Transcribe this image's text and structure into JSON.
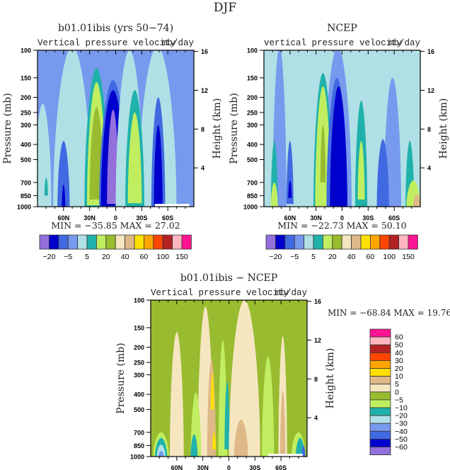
{
  "chart_data": [
    {
      "type": "heatmap",
      "figure_title": "DJF",
      "id": "model",
      "title": "b01.01ibis (yrs 50−74)",
      "left_string": "Vertical pressure velocity",
      "right_string": "mb/day",
      "ylabel": "Pressure (mb)",
      "ylabel_right": "Height (km)",
      "xlabel": "",
      "x_ticks": [
        "60N",
        "30N",
        "0",
        "30S",
        "60S"
      ],
      "x_range": [
        "90N",
        "90S"
      ],
      "y_ticks": [
        100,
        150,
        200,
        250,
        300,
        400,
        500,
        700,
        850,
        1000
      ],
      "y_range": [
        1000,
        100
      ],
      "y_right_ticks": [
        4,
        8,
        12,
        16
      ],
      "stats": "MIN = −35.85   MAX =   27.02",
      "min": -35.85,
      "max": 27.02,
      "colorbar": {
        "orientation": "horizontal",
        "levels": [
          -20,
          -10,
          -5,
          0,
          5,
          10,
          20,
          30,
          40,
          50,
          60,
          80,
          100,
          120,
          150
        ],
        "labels": [
          "−20",
          "−5",
          "5",
          "20",
          "40",
          "60",
          "100",
          "150"
        ]
      }
    },
    {
      "type": "heatmap",
      "id": "obs",
      "title": "NCEP",
      "left_string": "vertical pressure velocity",
      "right_string": "mb/day",
      "ylabel": "Pressure (mb)",
      "ylabel_right": "Height (km)",
      "x_ticks": [
        "60N",
        "30N",
        "0",
        "30S",
        "60S"
      ],
      "x_range": [
        "90N",
        "90S"
      ],
      "y_ticks": [
        100,
        150,
        200,
        250,
        300,
        400,
        500,
        700,
        850,
        1000
      ],
      "y_range": [
        1000,
        100
      ],
      "y_right_ticks": [
        4,
        8,
        12,
        16
      ],
      "stats": "MIN = −22.73   MAX =   50.10",
      "min": -22.73,
      "max": 50.1,
      "colorbar": {
        "orientation": "horizontal",
        "levels": [
          -20,
          -10,
          -5,
          0,
          5,
          10,
          20,
          30,
          40,
          50,
          60,
          80,
          100,
          120,
          150
        ],
        "labels": [
          "−20",
          "−5",
          "5",
          "20",
          "40",
          "60",
          "100",
          "150"
        ]
      }
    },
    {
      "type": "heatmap",
      "id": "diff",
      "title": "b01.01ibis − NCEP",
      "left_string": "Vertical pressure velocity",
      "right_string": "mb/day",
      "ylabel": "Pressure (mb)",
      "ylabel_right": "Height (km)",
      "x_ticks": [
        "60N",
        "30N",
        "0",
        "30S",
        "60S"
      ],
      "x_range": [
        "90N",
        "90S"
      ],
      "y_ticks": [
        100,
        150,
        200,
        250,
        300,
        400,
        500,
        700,
        850,
        1000
      ],
      "y_range": [
        1000,
        100
      ],
      "y_right_ticks": [
        4,
        8,
        12,
        16
      ],
      "stats": "MIN = −68.84   MAX =   19.76",
      "min": -68.84,
      "max": 19.76,
      "colorbar": {
        "orientation": "vertical",
        "levels": [
          -60,
          -50,
          -40,
          -30,
          -20,
          -10,
          -5,
          0,
          5,
          10,
          20,
          30,
          40,
          50,
          60
        ],
        "labels": [
          "60",
          "50",
          "40",
          "30",
          "20",
          "10",
          "5",
          "0",
          "−5",
          "−10",
          "−20",
          "−30",
          "−40",
          "−50",
          "−60"
        ]
      }
    }
  ],
  "palette": [
    "#9370db",
    "#0000cd",
    "#4169e1",
    "#7799ee",
    "#b0e0e6",
    "#20b2aa",
    "#c0ee60",
    "#98bb30",
    "#f5e6c0",
    "#deb887",
    "#ffe000",
    "#ffa500",
    "#ff4500",
    "#b22222",
    "#ffb6c1",
    "#ff1493"
  ]
}
